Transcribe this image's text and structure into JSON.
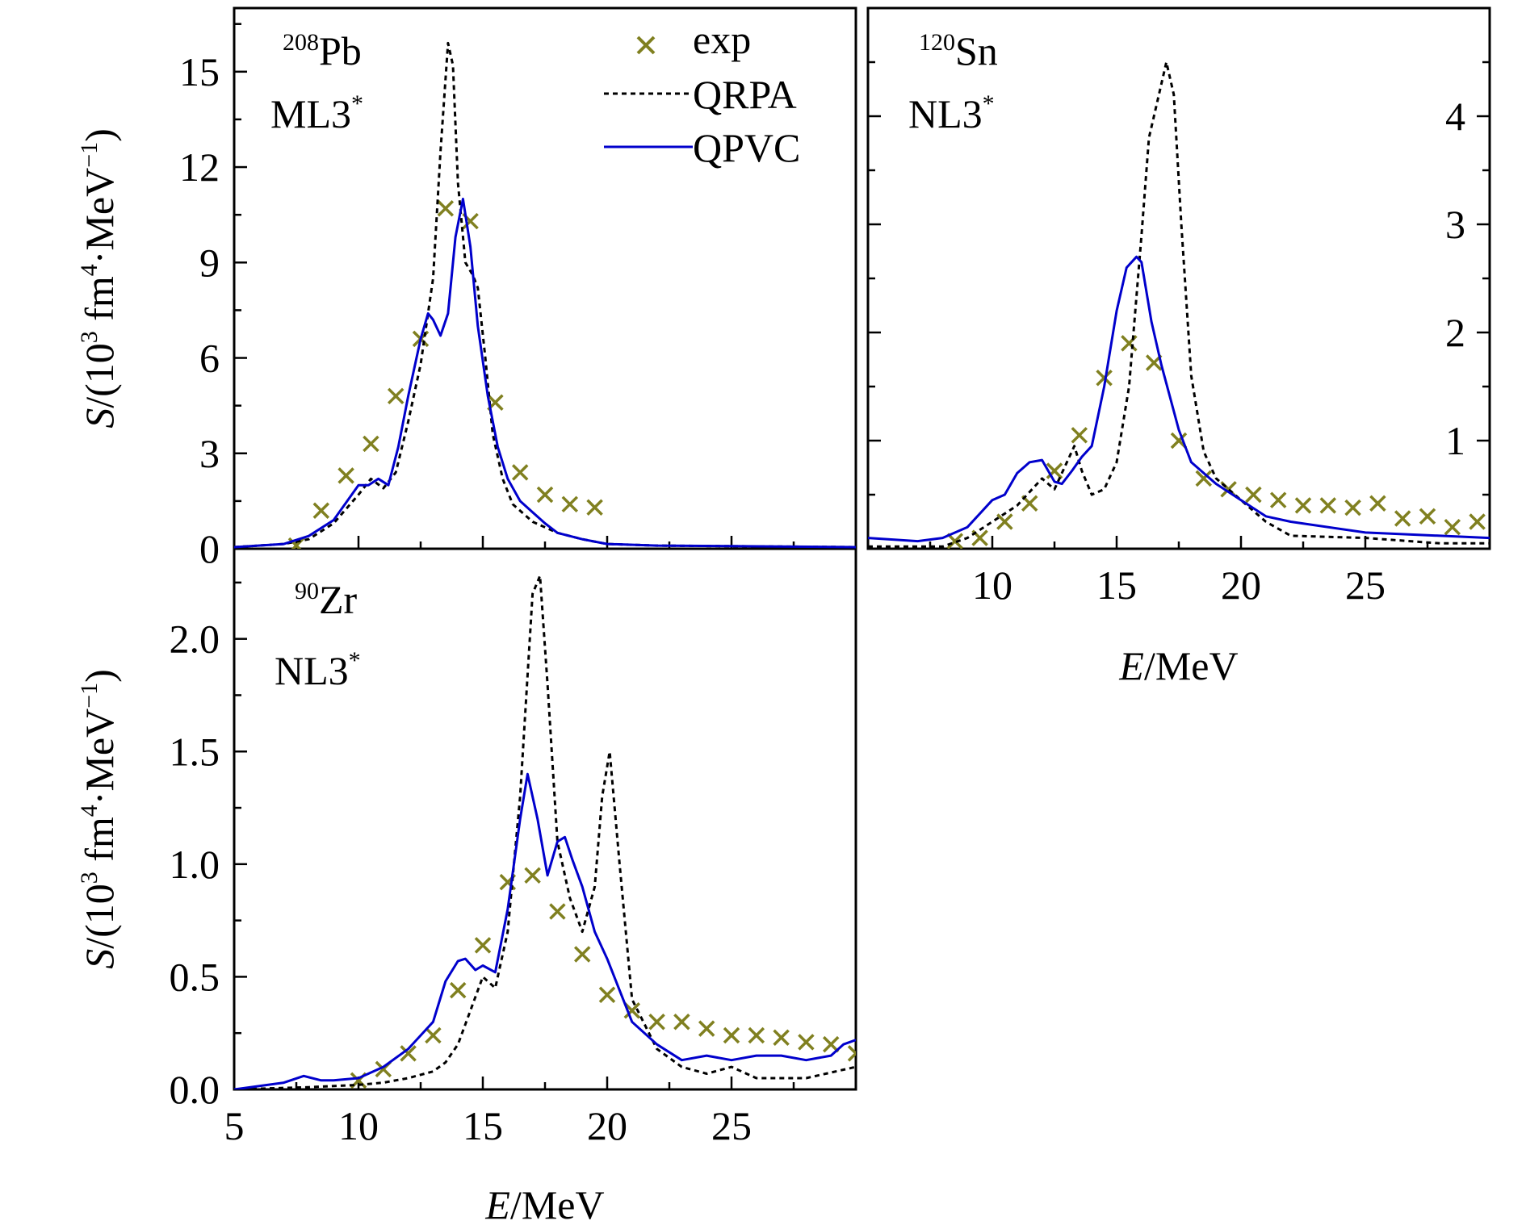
{
  "chart_data": [
    {
      "type": "line",
      "nucleus": {
        "mass": "208",
        "symbol": "Pb"
      },
      "interaction": {
        "base": "ML3",
        "sup": "*"
      },
      "xlabel": {
        "italic": "E",
        "rest": "/MeV"
      },
      "ylabel": {
        "italic": "S",
        "pre": "/(10",
        "exp1": "3",
        "mid": " fm",
        "exp2": "4",
        "post": "·MeV",
        "exp3": "−1",
        "close": ")"
      },
      "xlim": [
        5,
        30
      ],
      "ylim": [
        0,
        17
      ],
      "xticks": [],
      "yticks": [
        "0",
        "3",
        "6",
        "9",
        "12",
        "15"
      ],
      "legend": {
        "placement": "top-right",
        "entries": [
          "exp",
          "QRPA",
          "QPVC"
        ]
      },
      "series": [
        {
          "name": "exp",
          "style": "marker-x",
          "color": "#808020",
          "x": [
            7.5,
            8.5,
            9.5,
            10.5,
            11.5,
            12.5,
            13.5,
            14.5,
            15.5,
            16.5,
            17.5,
            18.5,
            19.5
          ],
          "y": [
            0.1,
            1.2,
            2.3,
            3.3,
            4.8,
            6.6,
            10.7,
            10.3,
            4.6,
            2.4,
            1.7,
            1.4,
            1.3
          ]
        },
        {
          "name": "QRPA",
          "style": "dashed",
          "color": "#000000",
          "x": [
            5,
            7,
            8,
            9,
            10,
            10.5,
            11,
            11.5,
            12,
            12.5,
            13,
            13.3,
            13.6,
            13.8,
            14.0,
            14.3,
            14.6,
            14.8,
            15.1,
            15.4,
            15.8,
            16.2,
            17,
            18,
            19,
            20,
            22,
            25,
            30
          ],
          "y": [
            0.05,
            0.15,
            0.3,
            0.8,
            1.7,
            2.2,
            1.9,
            2.4,
            4.0,
            5.8,
            8.5,
            12.5,
            15.9,
            15.2,
            11.5,
            9.0,
            8.6,
            8.2,
            6.0,
            3.6,
            2.2,
            1.4,
            0.85,
            0.5,
            0.3,
            0.15,
            0.1,
            0.08,
            0.05
          ]
        },
        {
          "name": "QPVC",
          "style": "solid",
          "color": "#0000cc",
          "x": [
            5,
            7,
            8,
            9,
            10,
            10.4,
            10.8,
            11.2,
            11.6,
            12,
            12.5,
            12.8,
            13.0,
            13.3,
            13.6,
            13.9,
            14.2,
            14.5,
            14.8,
            15.2,
            15.6,
            16,
            16.5,
            17,
            17.5,
            18,
            19,
            20,
            22,
            25,
            30
          ],
          "y": [
            0.05,
            0.15,
            0.4,
            0.9,
            2.0,
            2.0,
            2.2,
            2.0,
            3.2,
            4.8,
            6.6,
            7.4,
            7.2,
            6.7,
            7.4,
            9.8,
            11.0,
            9.5,
            7.0,
            4.8,
            3.2,
            2.2,
            1.5,
            1.15,
            0.8,
            0.5,
            0.3,
            0.15,
            0.1,
            0.08,
            0.05
          ]
        }
      ]
    },
    {
      "type": "line",
      "nucleus": {
        "mass": "120",
        "symbol": "Sn"
      },
      "interaction": {
        "base": "NL3",
        "sup": "*"
      },
      "xlabel": {
        "italic": "E",
        "rest": "/MeV"
      },
      "xlim": [
        5,
        30
      ],
      "ylim": [
        0,
        5
      ],
      "yaxis_side": "right",
      "xticks": [
        "10",
        "15",
        "20",
        "25"
      ],
      "yticks": [
        "1",
        "2",
        "3",
        "4"
      ],
      "series": [
        {
          "name": "exp",
          "style": "marker-x",
          "color": "#808020",
          "x": [
            8.5,
            9.5,
            10.5,
            11.5,
            12.5,
            13.5,
            14.5,
            15.5,
            16.5,
            17.5,
            18.5,
            19.5,
            20.5,
            21.5,
            22.5,
            23.5,
            24.5,
            25.5,
            26.5,
            27.5,
            28.5,
            29.5
          ],
          "y": [
            0.07,
            0.1,
            0.25,
            0.42,
            0.72,
            1.05,
            1.58,
            1.9,
            1.72,
            1.0,
            0.65,
            0.55,
            0.5,
            0.45,
            0.4,
            0.4,
            0.38,
            0.42,
            0.28,
            0.3,
            0.2,
            0.25
          ]
        },
        {
          "name": "QRPA",
          "style": "dashed",
          "color": "#000000",
          "x": [
            5,
            8,
            9,
            10,
            11,
            12,
            12.5,
            13,
            13.3,
            13.6,
            14,
            14.5,
            15,
            15.5,
            16,
            16.3,
            16.6,
            17,
            17.3,
            17.6,
            18,
            18.5,
            19,
            20,
            21,
            22,
            25,
            28,
            30
          ],
          "y": [
            0.02,
            0.02,
            0.1,
            0.25,
            0.4,
            0.65,
            0.55,
            0.8,
            0.95,
            0.72,
            0.5,
            0.55,
            0.8,
            1.5,
            2.9,
            3.8,
            4.1,
            4.5,
            4.2,
            3.0,
            1.6,
            0.9,
            0.65,
            0.45,
            0.25,
            0.12,
            0.1,
            0.05,
            0.05
          ]
        },
        {
          "name": "QPVC",
          "style": "solid",
          "color": "#0000cc",
          "x": [
            5,
            7,
            8,
            9,
            10,
            10.5,
            11,
            11.5,
            12,
            12.5,
            12.8,
            13.2,
            13.6,
            14,
            14.5,
            15,
            15.4,
            15.8,
            16,
            16.4,
            16.8,
            17.5,
            18,
            19,
            20,
            21,
            22,
            25,
            28,
            30
          ],
          "y": [
            0.1,
            0.07,
            0.1,
            0.2,
            0.45,
            0.5,
            0.7,
            0.8,
            0.82,
            0.62,
            0.6,
            0.72,
            0.85,
            0.95,
            1.5,
            2.2,
            2.6,
            2.7,
            2.65,
            2.1,
            1.7,
            1.1,
            0.8,
            0.6,
            0.45,
            0.3,
            0.25,
            0.15,
            0.12,
            0.1
          ]
        }
      ]
    },
    {
      "type": "line",
      "nucleus": {
        "mass": "90",
        "symbol": "Zr"
      },
      "interaction": {
        "base": "NL3",
        "sup": "*"
      },
      "xlabel": {
        "italic": "E",
        "rest": "/MeV"
      },
      "ylabel": {
        "italic": "S",
        "pre": "/(10",
        "exp1": "3",
        "mid": " fm",
        "exp2": "4",
        "post": "·MeV",
        "exp3": "−1",
        "close": ")"
      },
      "xlim": [
        5,
        30
      ],
      "ylim": [
        0,
        2.4
      ],
      "xticks": [
        "5",
        "10",
        "15",
        "20",
        "25"
      ],
      "yticks": [
        "0.0",
        "0.5",
        "1.0",
        "1.5",
        "2.0"
      ],
      "series": [
        {
          "name": "exp",
          "style": "marker-x",
          "color": "#808020",
          "x": [
            10,
            11,
            12,
            13,
            14,
            15,
            16,
            17,
            18,
            19,
            20,
            21,
            22,
            23,
            24,
            25,
            26,
            27,
            28,
            29,
            30
          ],
          "y": [
            0.04,
            0.09,
            0.16,
            0.24,
            0.44,
            0.64,
            0.92,
            0.95,
            0.79,
            0.6,
            0.42,
            0.35,
            0.3,
            0.3,
            0.27,
            0.24,
            0.24,
            0.23,
            0.21,
            0.2,
            0.16
          ]
        },
        {
          "name": "QRPA",
          "style": "dashed",
          "color": "#000000",
          "x": [
            5,
            8,
            10,
            11,
            12,
            13,
            13.5,
            14,
            14.5,
            15,
            15.5,
            16,
            16.5,
            17,
            17.3,
            17.6,
            18,
            18.5,
            19,
            19.5,
            19.8,
            20.1,
            20.5,
            21,
            22,
            23,
            24,
            25,
            26,
            28,
            30
          ],
          "y": [
            0,
            0.01,
            0.02,
            0.03,
            0.05,
            0.08,
            0.12,
            0.2,
            0.35,
            0.5,
            0.45,
            0.7,
            1.3,
            2.2,
            2.28,
            1.8,
            1.1,
            0.85,
            0.7,
            0.9,
            1.3,
            1.5,
            1.0,
            0.4,
            0.18,
            0.1,
            0.07,
            0.1,
            0.05,
            0.05,
            0.1
          ]
        },
        {
          "name": "QPVC",
          "style": "solid",
          "color": "#0000cc",
          "x": [
            5,
            7,
            7.8,
            8.5,
            9,
            10,
            11,
            12,
            13,
            13.5,
            14,
            14.3,
            14.7,
            15,
            15.5,
            16,
            16.5,
            16.8,
            17.2,
            17.6,
            18,
            18.3,
            18.6,
            19,
            19.5,
            20,
            21,
            22,
            23,
            24,
            25,
            26,
            27,
            28,
            29,
            29.5,
            30
          ],
          "y": [
            0,
            0.03,
            0.06,
            0.04,
            0.04,
            0.05,
            0.1,
            0.18,
            0.3,
            0.48,
            0.57,
            0.58,
            0.53,
            0.55,
            0.52,
            0.8,
            1.2,
            1.4,
            1.2,
            0.95,
            1.1,
            1.12,
            1.02,
            0.9,
            0.7,
            0.58,
            0.3,
            0.2,
            0.13,
            0.15,
            0.13,
            0.15,
            0.15,
            0.13,
            0.15,
            0.2,
            0.22
          ]
        }
      ]
    }
  ]
}
